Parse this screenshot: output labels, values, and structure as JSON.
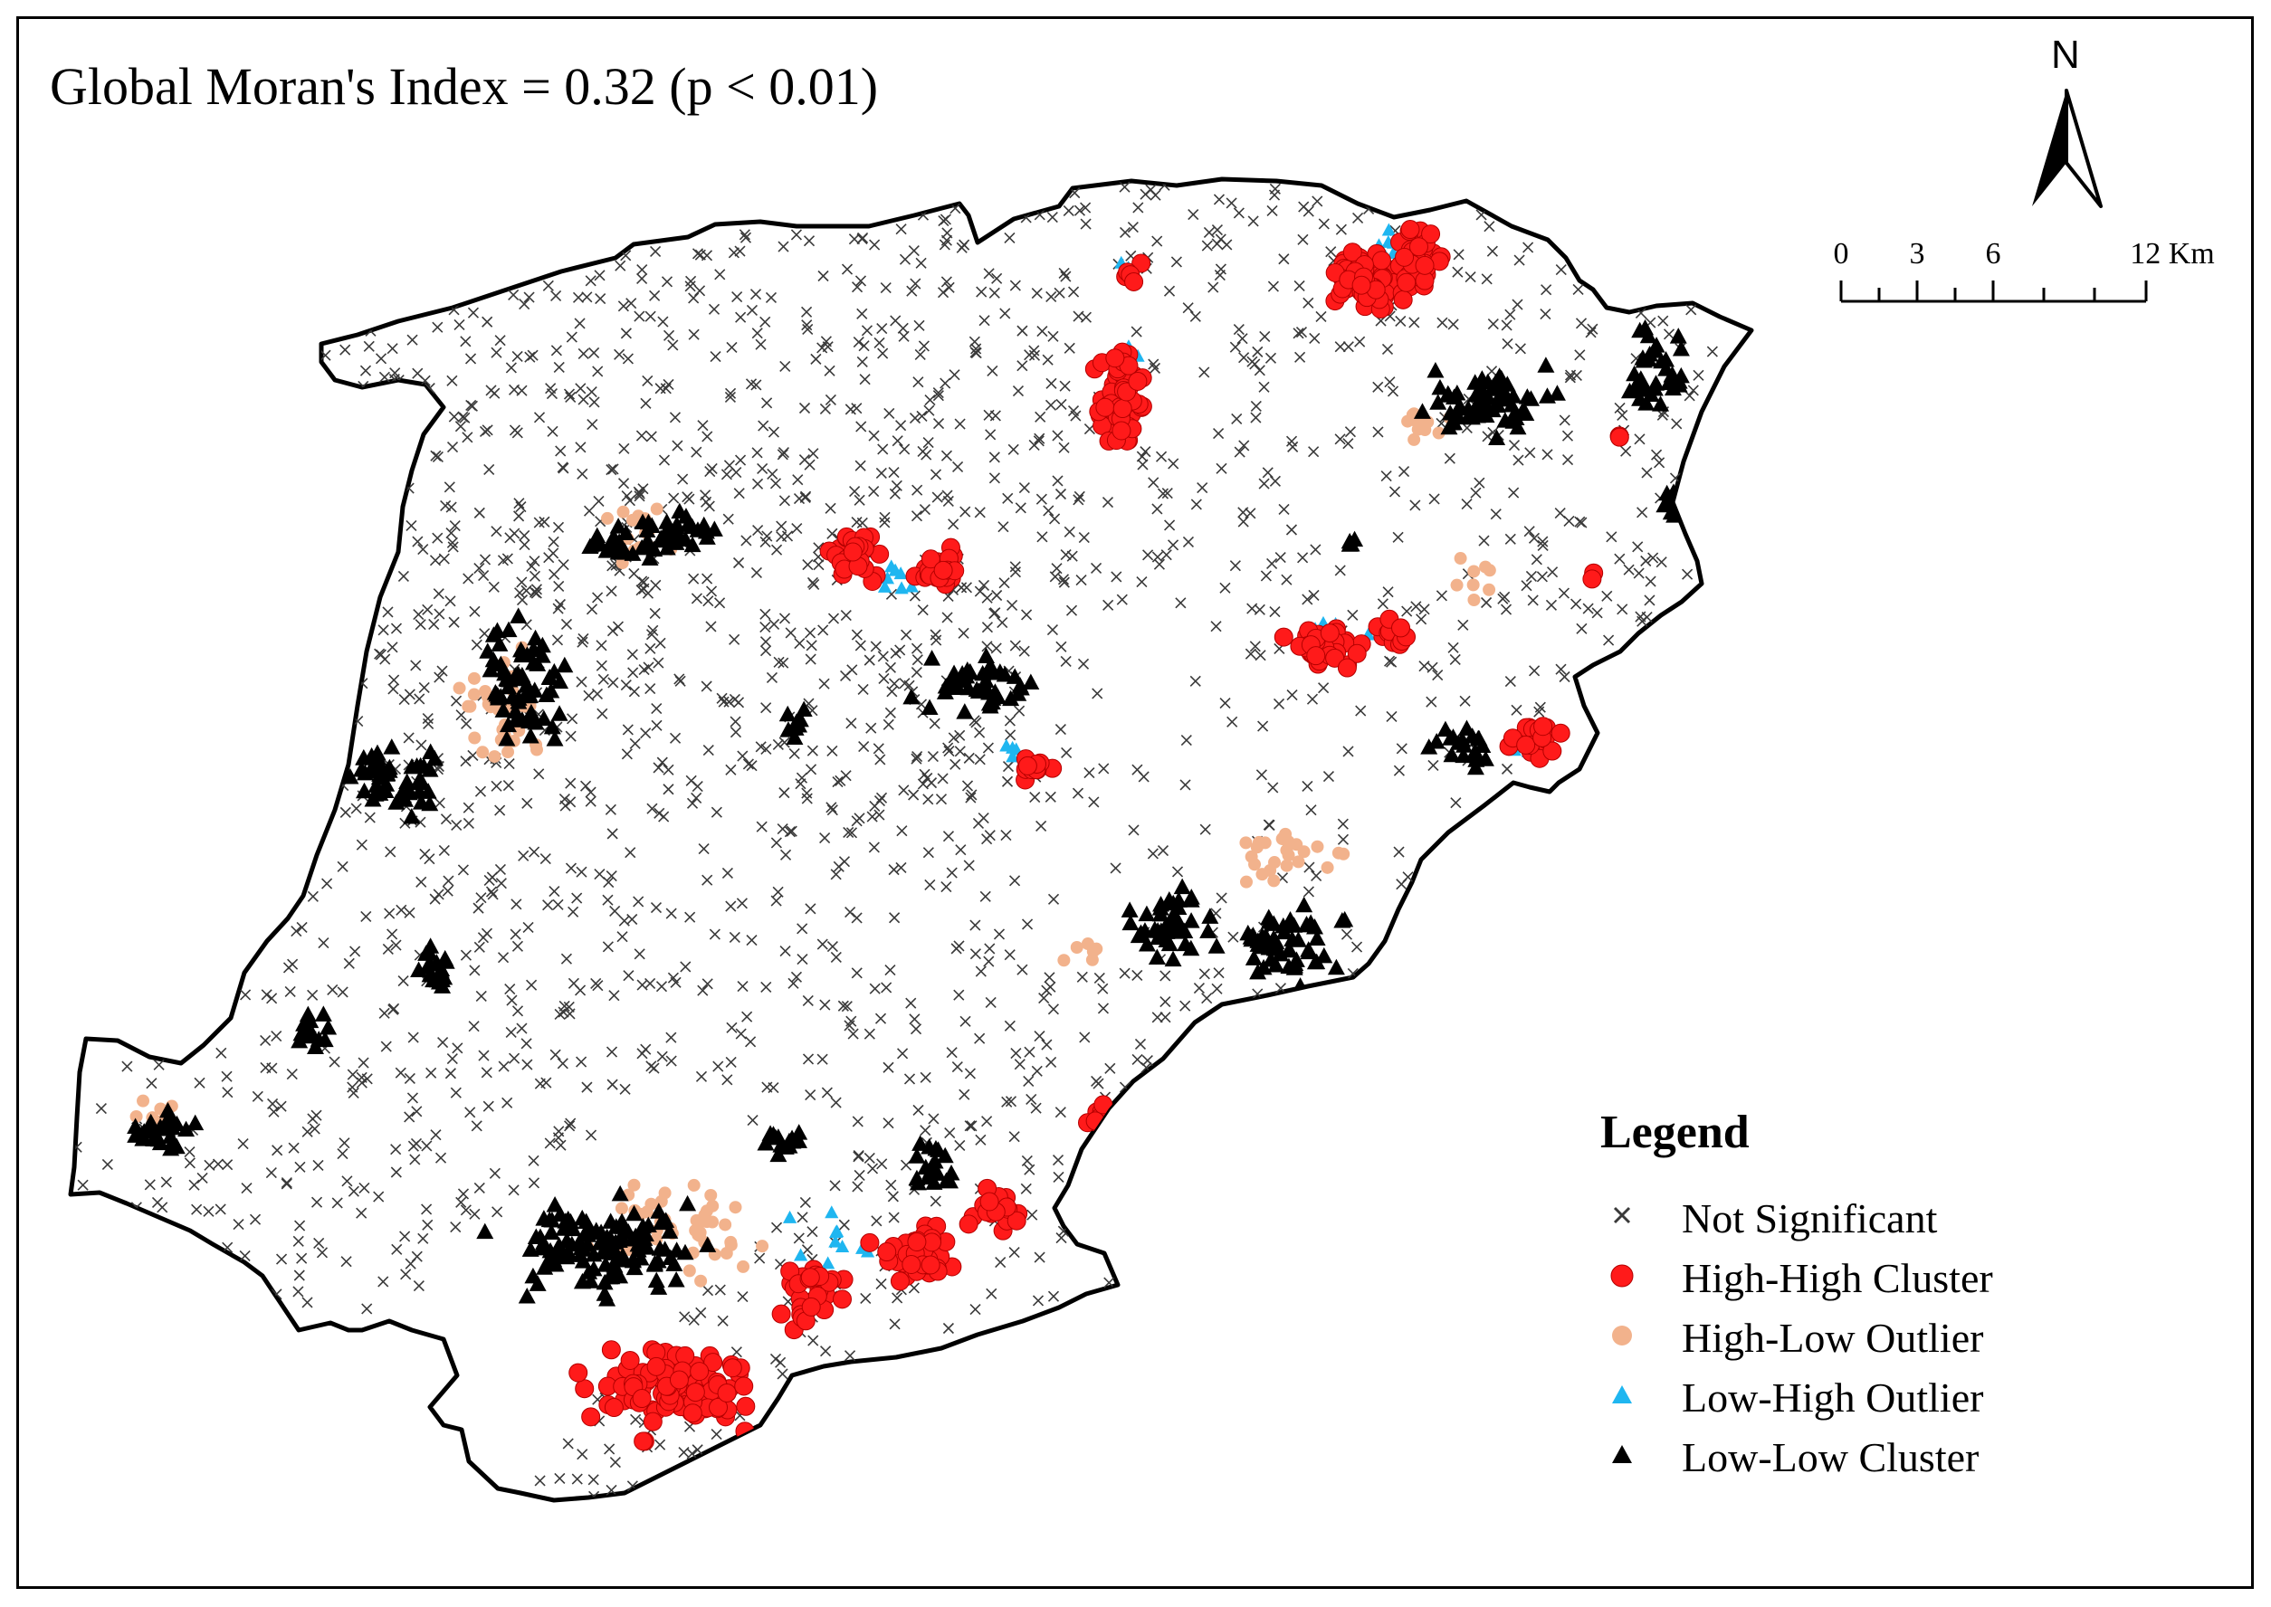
{
  "title": "Global Moran's Index = 0.32 (p < 0.01)",
  "north_arrow": {
    "label": "N",
    "icon": "north-arrow-icon"
  },
  "scale_bar": {
    "labels": [
      "0",
      "3",
      "6",
      "12 Km"
    ],
    "unit": "Km"
  },
  "legend": {
    "title": "Legend",
    "items": [
      {
        "label": "Not Significant",
        "icon": "x-mark-icon",
        "color": "#3a3a3a"
      },
      {
        "label": "High-High Cluster",
        "icon": "circle-icon",
        "color": "#ff1a1a"
      },
      {
        "label": "High-Low Outlier",
        "icon": "circle-icon",
        "color": "#f2b28c"
      },
      {
        "label": "Low-High Outlier",
        "icon": "triangle-icon",
        "color": "#1fb6f0"
      },
      {
        "label": "Low-Low Cluster",
        "icon": "triangle-icon",
        "color": "#000000"
      }
    ]
  },
  "colors": {
    "high_high": "#ff1a1a",
    "high_low": "#f2b28c",
    "low_high": "#1fb6f0",
    "low_low": "#000000",
    "not_significant": "#3a3a3a",
    "boundary": "#000000"
  }
}
